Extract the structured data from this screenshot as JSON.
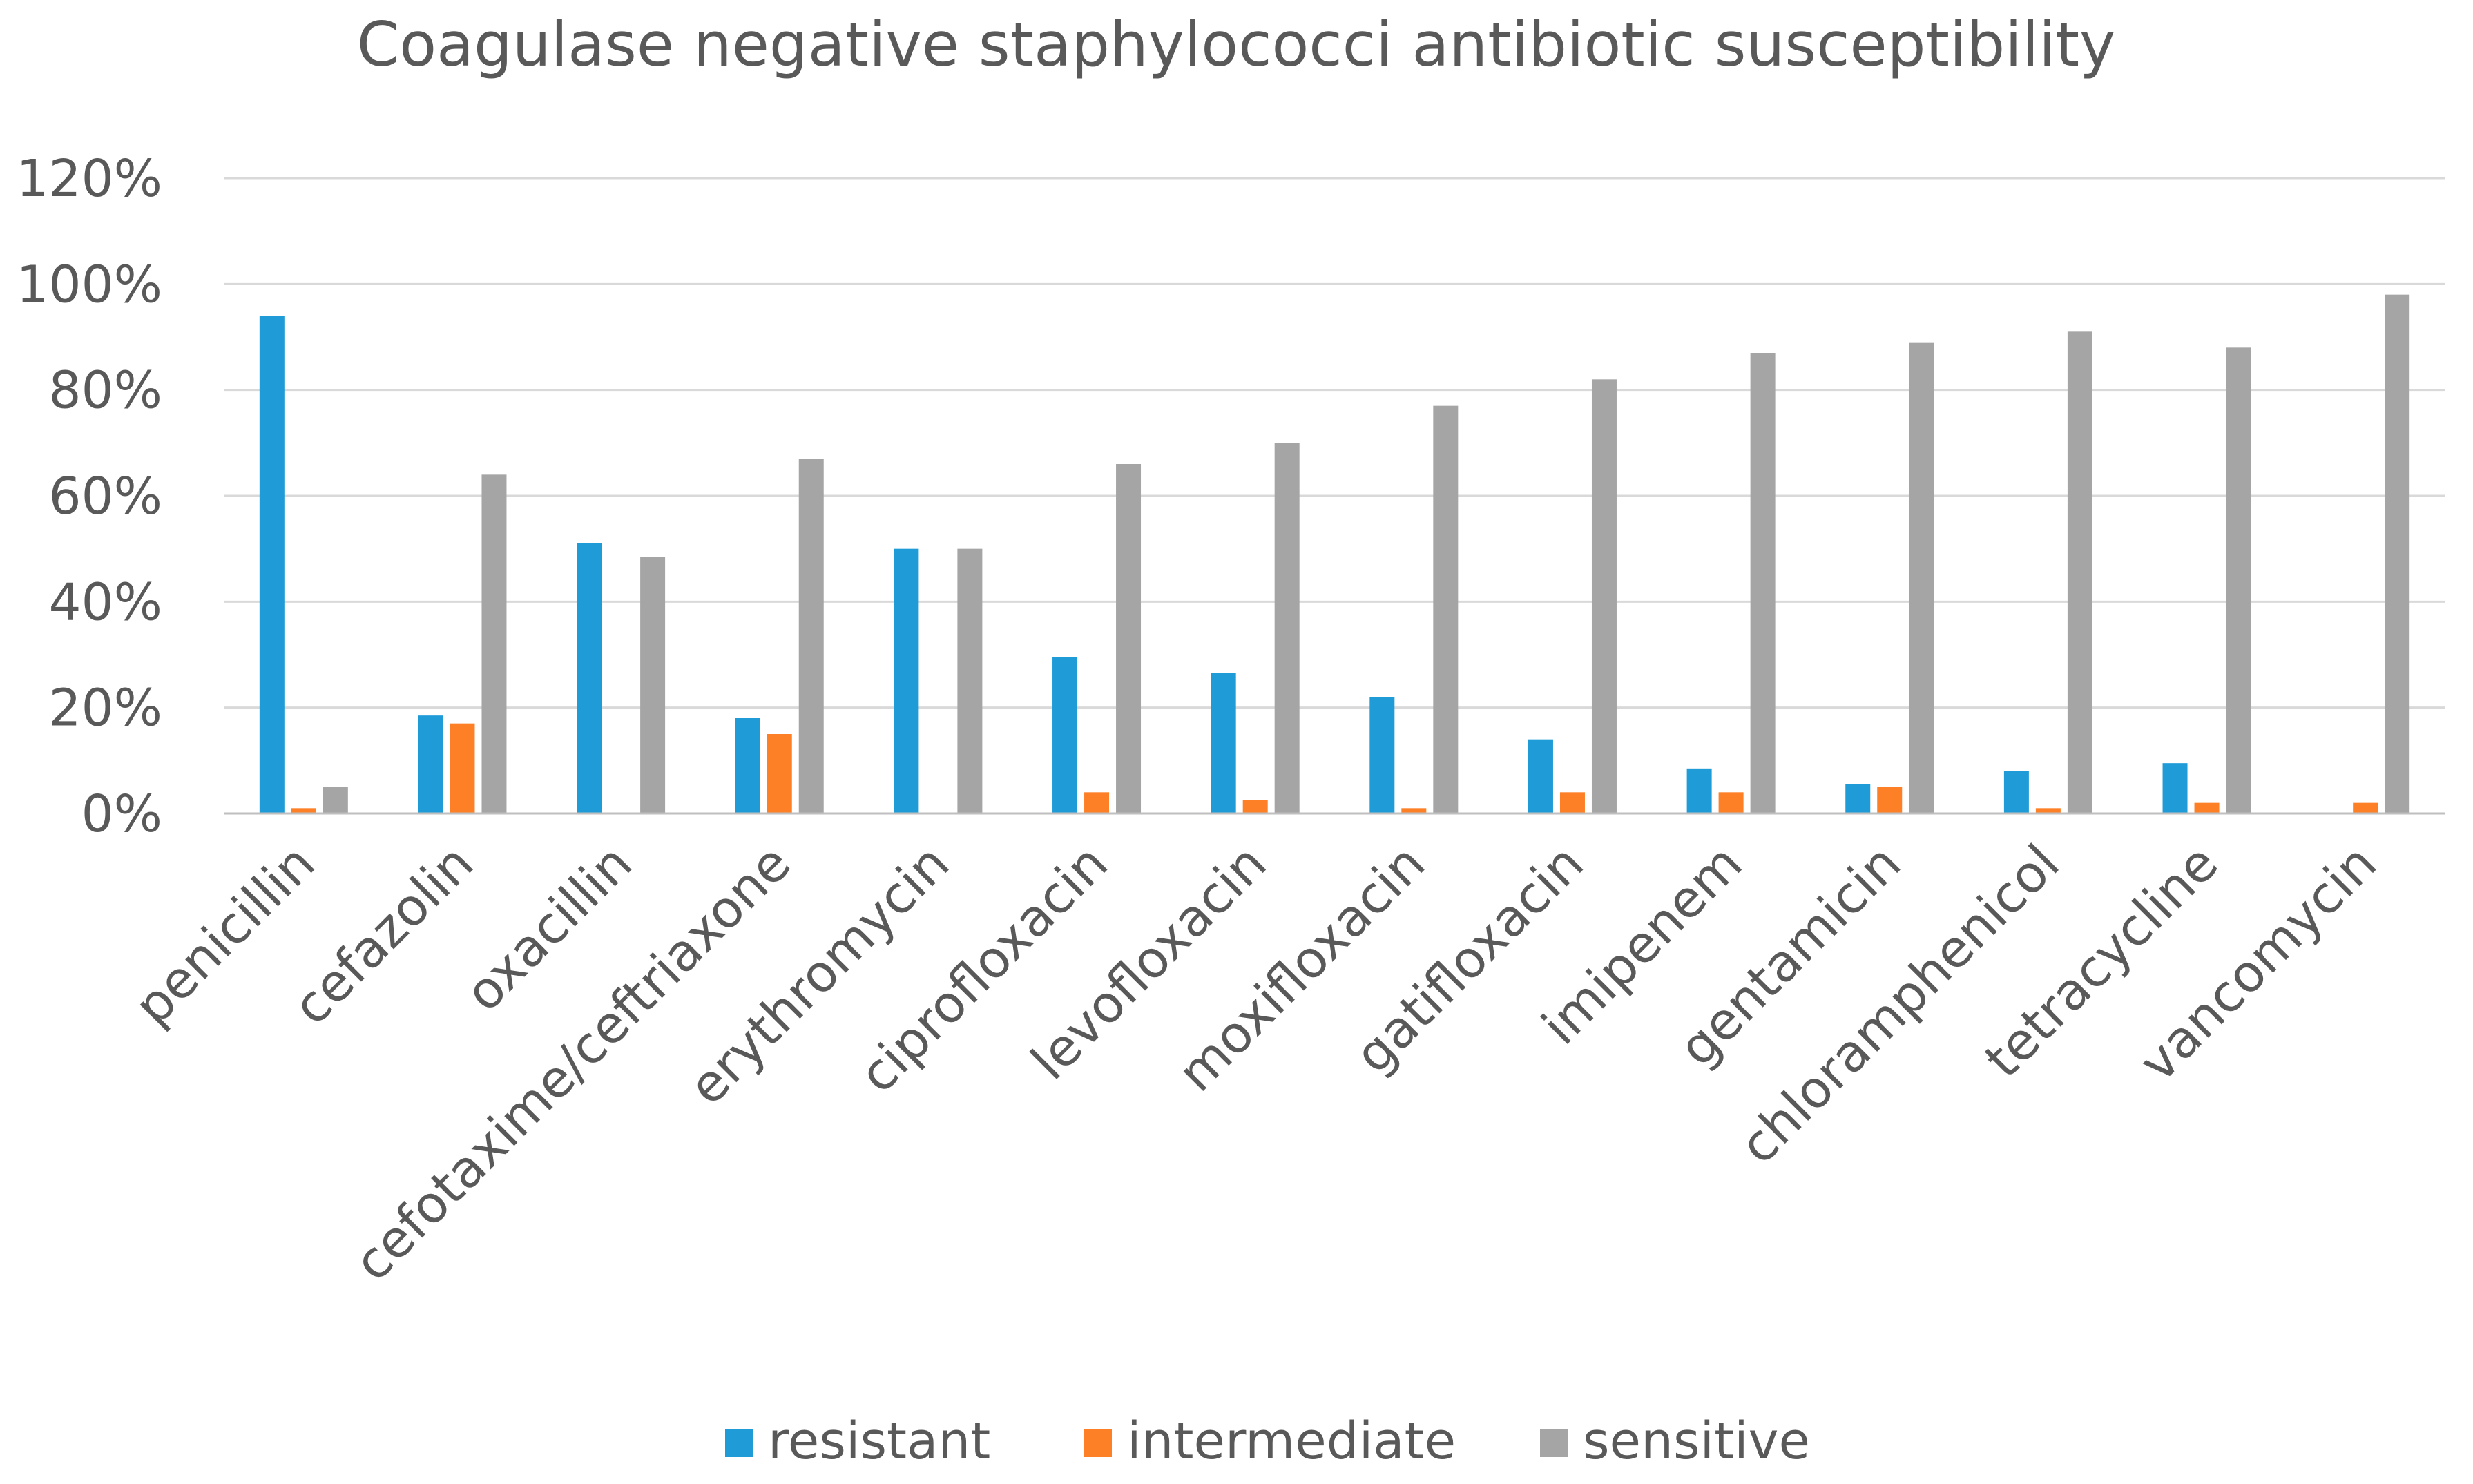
{
  "colors": {
    "resistant": "#1f9bd7",
    "intermediate": "#fd7f26",
    "sensitive": "#a5a5a5"
  },
  "chart_data": {
    "type": "bar",
    "title": "Coagulase negative staphylococci antibiotic susceptibility",
    "xlabel": "",
    "ylabel": "",
    "ylim": [
      0,
      120
    ],
    "yticks": [
      "0%",
      "20%",
      "40%",
      "60%",
      "80%",
      "100%",
      "120%"
    ],
    "grid": true,
    "legend_position": "bottom",
    "categories": [
      "penicillin",
      "cefazolin",
      "oxacillin",
      "cefotaxime/ceftriaxone",
      "erythromycin",
      "ciprofloxacin",
      "levofloxacin",
      "moxifloxacin",
      "gatifloxacin",
      "imipenem",
      "gentamicin",
      "chloramphenicol",
      "tetracycline",
      "vancomycin"
    ],
    "series": [
      {
        "name": "resistant",
        "values": [
          94,
          18.5,
          51,
          18,
          50,
          29.5,
          26.5,
          22,
          14,
          8.5,
          5.5,
          8,
          9.5,
          0
        ]
      },
      {
        "name": "intermediate",
        "values": [
          1,
          17,
          0,
          15,
          0,
          4,
          2.5,
          1,
          4,
          4,
          5,
          1,
          2,
          2
        ]
      },
      {
        "name": "sensitive",
        "values": [
          5,
          64,
          48.5,
          67,
          50,
          66,
          70,
          77,
          82,
          87,
          89,
          91,
          88,
          98
        ]
      }
    ]
  }
}
